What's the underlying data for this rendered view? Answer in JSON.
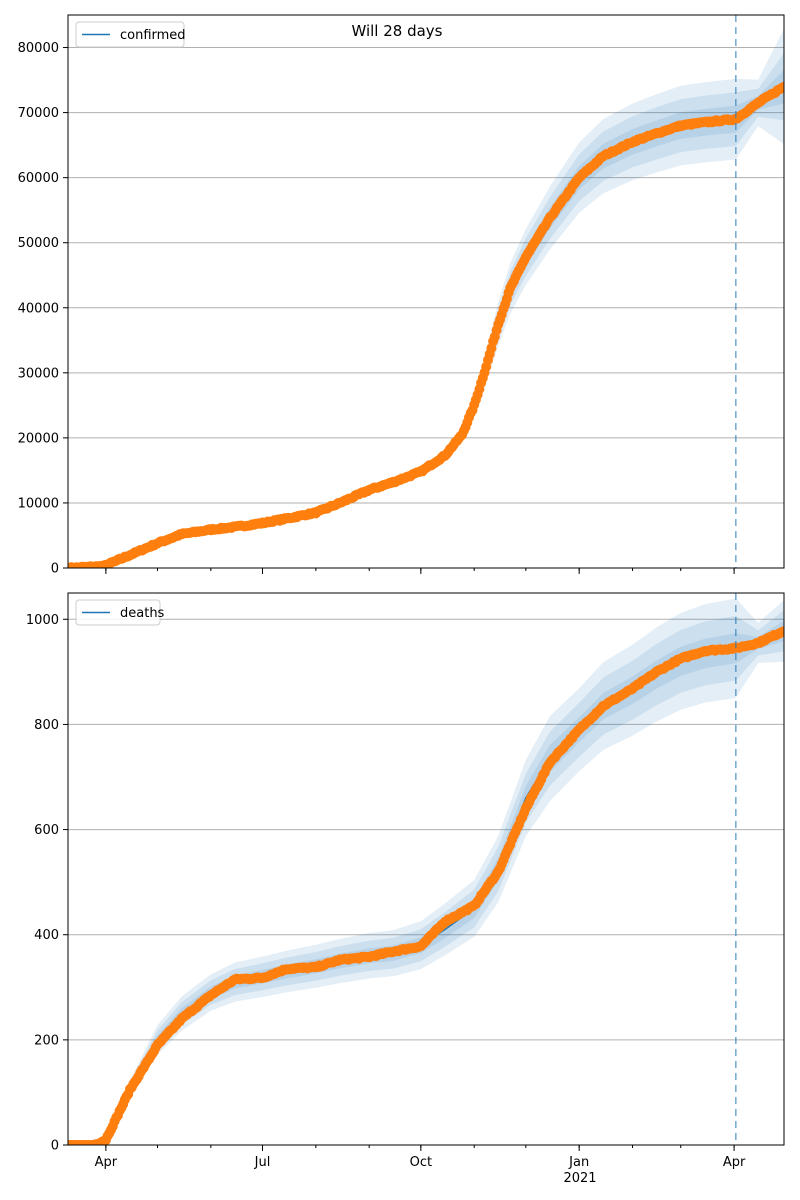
{
  "figure": {
    "title": "Will 28 days",
    "year_label": "2021",
    "colors": {
      "model_line": "#1f77b4",
      "band": "#1f77b4",
      "observed": "#ff7f0e",
      "grid": "#b0b0b0",
      "axis": "#000000",
      "forecast_line": "#1f77b4"
    }
  },
  "chart_data": [
    {
      "type": "line",
      "title": "Will 28 days",
      "xlabel": "",
      "ylabel": "",
      "x_range": [
        "2020-03-10",
        "2021-04-30"
      ],
      "ylim": [
        0,
        85000
      ],
      "y_ticks": [
        0,
        10000,
        20000,
        30000,
        40000,
        50000,
        60000,
        70000,
        80000
      ],
      "x_ticks": [
        {
          "date": "2020-04-01",
          "label": "Apr"
        },
        {
          "date": "2020-07-01",
          "label": "Jul"
        },
        {
          "date": "2020-10-01",
          "label": "Oct"
        },
        {
          "date": "2021-01-01",
          "label": "Jan"
        },
        {
          "date": "2021-04-01",
          "label": "Apr"
        }
      ],
      "grid": "y",
      "legend": {
        "position": "top-left",
        "entries": [
          "confirmed"
        ]
      },
      "forecast_start": "2021-04-02",
      "series": [
        {
          "name": "confirmed",
          "kind": "model",
          "x": [
            "2020-03-10",
            "2020-03-31",
            "2020-04-15",
            "2020-05-01",
            "2020-05-15",
            "2020-06-01",
            "2020-06-15",
            "2020-07-01",
            "2020-07-15",
            "2020-08-01",
            "2020-08-15",
            "2020-09-01",
            "2020-09-15",
            "2020-10-01",
            "2020-10-15",
            "2020-10-25",
            "2020-11-01",
            "2020-11-08",
            "2020-11-15",
            "2020-11-22",
            "2020-12-01",
            "2020-12-08",
            "2020-12-15",
            "2021-01-01",
            "2021-01-15",
            "2021-02-01",
            "2021-02-15",
            "2021-03-01",
            "2021-03-15",
            "2021-04-02",
            "2021-04-15",
            "2021-04-30"
          ],
          "y": [
            0,
            300,
            2000,
            3800,
            5200,
            5900,
            6300,
            6900,
            7600,
            8500,
            10000,
            12000,
            13200,
            14800,
            17300,
            20500,
            25000,
            31000,
            37500,
            43000,
            47800,
            50800,
            53800,
            60000,
            63300,
            65500,
            66800,
            68000,
            68500,
            69000,
            71500,
            74000
          ]
        },
        {
          "name": "confirmed observed",
          "kind": "observed",
          "x": [
            "2020-03-10",
            "2020-03-31",
            "2020-04-15",
            "2020-05-01",
            "2020-05-15",
            "2020-06-01",
            "2020-06-15",
            "2020-07-01",
            "2020-07-15",
            "2020-08-01",
            "2020-08-15",
            "2020-09-01",
            "2020-09-15",
            "2020-10-01",
            "2020-10-15",
            "2020-10-25",
            "2020-11-01",
            "2020-11-08",
            "2020-11-15",
            "2020-11-22",
            "2020-12-01",
            "2020-12-08",
            "2020-12-15",
            "2021-01-01",
            "2021-01-15",
            "2021-02-01",
            "2021-02-15",
            "2021-03-01",
            "2021-03-15",
            "2021-04-02",
            "2021-04-15",
            "2021-04-30"
          ],
          "y": [
            0,
            300,
            2000,
            3800,
            5200,
            5900,
            6300,
            6900,
            7600,
            8500,
            10000,
            12000,
            13200,
            14800,
            17300,
            20500,
            25000,
            31000,
            37500,
            43000,
            47800,
            50800,
            53800,
            60000,
            63300,
            65500,
            66800,
            68000,
            68500,
            69000,
            71500,
            74000
          ]
        }
      ],
      "bands": [
        {
          "half_width_pct": [
            0,
            2,
            4,
            4,
            4,
            4,
            4,
            4,
            4,
            4,
            4,
            4,
            4,
            4,
            4,
            4,
            6,
            8,
            9,
            9,
            9,
            9,
            9,
            9,
            9,
            9,
            9,
            9,
            9,
            9,
            5,
            12
          ]
        },
        {
          "half_width_pct": [
            0,
            1.3,
            2.5,
            2.5,
            2.5,
            2.5,
            2.5,
            2.5,
            2.5,
            2.5,
            2.5,
            2.5,
            2.5,
            2.5,
            2.5,
            2.5,
            4,
            5.5,
            6,
            6,
            6,
            6,
            6,
            6,
            6,
            6,
            6,
            6,
            6,
            6,
            3,
            7
          ]
        },
        {
          "half_width_pct": [
            0,
            0.6,
            1.2,
            1.2,
            1.2,
            1.2,
            1.2,
            1.2,
            1.2,
            1.2,
            1.2,
            1.2,
            1.2,
            1.2,
            1.2,
            1.2,
            2,
            2.8,
            3,
            3,
            3,
            3,
            3,
            3,
            3,
            3,
            3,
            3,
            3,
            3,
            1.5,
            3.5
          ]
        }
      ]
    },
    {
      "type": "line",
      "title": "",
      "xlabel": "",
      "ylabel": "",
      "x_range": [
        "2020-03-10",
        "2021-04-30"
      ],
      "ylim": [
        0,
        1050
      ],
      "y_ticks": [
        0,
        200,
        400,
        600,
        800,
        1000
      ],
      "x_ticks": [
        {
          "date": "2020-04-01",
          "label": "Apr"
        },
        {
          "date": "2020-07-01",
          "label": "Jul"
        },
        {
          "date": "2020-10-01",
          "label": "Oct"
        },
        {
          "date": "2021-01-01",
          "label": "Jan"
        },
        {
          "date": "2021-04-01",
          "label": "Apr"
        }
      ],
      "grid": "y",
      "legend": {
        "position": "top-left",
        "entries": [
          "deaths"
        ]
      },
      "forecast_start": "2021-04-02",
      "series": [
        {
          "name": "deaths",
          "kind": "model",
          "x": [
            "2020-03-10",
            "2020-03-25",
            "2020-04-01",
            "2020-04-15",
            "2020-05-01",
            "2020-05-15",
            "2020-06-01",
            "2020-06-15",
            "2020-07-01",
            "2020-07-15",
            "2020-08-01",
            "2020-08-15",
            "2020-09-01",
            "2020-09-15",
            "2020-10-01",
            "2020-10-15",
            "2020-11-01",
            "2020-11-15",
            "2020-12-01",
            "2020-12-15",
            "2021-01-01",
            "2021-01-15",
            "2021-02-01",
            "2021-02-15",
            "2021-03-01",
            "2021-03-15",
            "2021-04-02",
            "2021-04-15",
            "2021-04-30"
          ],
          "y": [
            0,
            0,
            10,
            110,
            200,
            250,
            290,
            310,
            320,
            330,
            340,
            350,
            360,
            365,
            380,
            410,
            450,
            525,
            660,
            735,
            790,
            835,
            865,
            895,
            920,
            935,
            945,
            955,
            978
          ]
        },
        {
          "name": "deaths observed",
          "kind": "observed",
          "x": [
            "2020-03-10",
            "2020-03-25",
            "2020-04-01",
            "2020-04-15",
            "2020-05-01",
            "2020-05-15",
            "2020-06-01",
            "2020-06-15",
            "2020-07-01",
            "2020-07-15",
            "2020-08-01",
            "2020-08-15",
            "2020-09-01",
            "2020-09-15",
            "2020-10-01",
            "2020-10-15",
            "2020-11-01",
            "2020-11-15",
            "2020-12-01",
            "2020-12-15",
            "2021-01-01",
            "2021-01-15",
            "2021-02-01",
            "2021-02-15",
            "2021-03-01",
            "2021-03-15",
            "2021-04-02",
            "2021-04-15",
            "2021-04-30"
          ],
          "y": [
            0,
            0,
            10,
            105,
            190,
            240,
            285,
            315,
            318,
            335,
            338,
            352,
            358,
            368,
            378,
            425,
            455,
            520,
            640,
            728,
            790,
            835,
            868,
            900,
            925,
            940,
            945,
            955,
            978
          ]
        }
      ],
      "bands": [
        {
          "half_width_pct": [
            0,
            0,
            10,
            12,
            14,
            13,
            12,
            12,
            12,
            12,
            12,
            12,
            12,
            12,
            12,
            12,
            12,
            12,
            11,
            11,
            10,
            10,
            10,
            10,
            10,
            10,
            10,
            4,
            6
          ]
        },
        {
          "half_width_pct": [
            0,
            0,
            6,
            8,
            9,
            8.5,
            8,
            8,
            8,
            8,
            8,
            8,
            8,
            8,
            8,
            8,
            8,
            8,
            7,
            7,
            6.5,
            6.5,
            6.5,
            6.5,
            6.5,
            6.5,
            6.5,
            2.5,
            4
          ]
        },
        {
          "half_width_pct": [
            0,
            0,
            3,
            4,
            4.5,
            4,
            4,
            4,
            4,
            4,
            4,
            4,
            4,
            4,
            4,
            4,
            4,
            4,
            3.5,
            3.5,
            3,
            3,
            3,
            3,
            3,
            3,
            3,
            1.2,
            2
          ]
        }
      ]
    }
  ]
}
